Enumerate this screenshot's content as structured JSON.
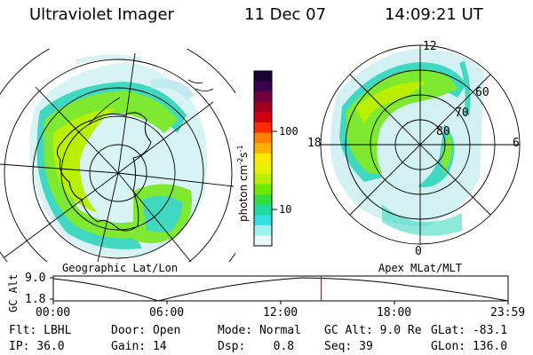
{
  "header": {
    "instrument": "Ultraviolet Imager",
    "date": "11 Dec 07",
    "time": "14:09:21 UT"
  },
  "left_panel": {
    "label": "Geographic Lat/Lon"
  },
  "right_panel": {
    "label": "Apex MLat/MLT",
    "mlt_labels": [
      "12",
      "18",
      "6",
      "0"
    ],
    "lat_labels": [
      "60",
      "70",
      "80"
    ]
  },
  "colorbar": {
    "unit": "photon cm",
    "unit_exp1": "-2",
    "unit_mid": "s",
    "unit_exp2": "-1",
    "ticks": [
      "100",
      "10"
    ],
    "colors": [
      "#1a0033",
      "#3a0050",
      "#700040",
      "#a00020",
      "#d00010",
      "#ff2a00",
      "#ff8000",
      "#ffb000",
      "#ffe800",
      "#e8f000",
      "#b8f000",
      "#70e800",
      "#30e040",
      "#20d8a0",
      "#30e0e0",
      "#a0f0f0",
      "#e8f8f8"
    ]
  },
  "timeline": {
    "ylabel": "GC Alt",
    "y_ticks": [
      "9.0",
      "1.8"
    ],
    "x_ticks": [
      "00:00",
      "06:00",
      "12:00",
      "18:00",
      "23:59"
    ],
    "current_fraction": 0.589
  },
  "info": {
    "row1": [
      "Flt: LBHL",
      "Door: Open",
      "Mode: Normal",
      "GC Alt: 9.0 Re",
      "GLat: -83.1"
    ],
    "row2": [
      "IP: 36.0",
      "Gain: 14",
      "Dsp:    0.8",
      "Seq: 39",
      "GLon: 136.0"
    ]
  },
  "colors": {
    "cursor": "#ff0000"
  }
}
